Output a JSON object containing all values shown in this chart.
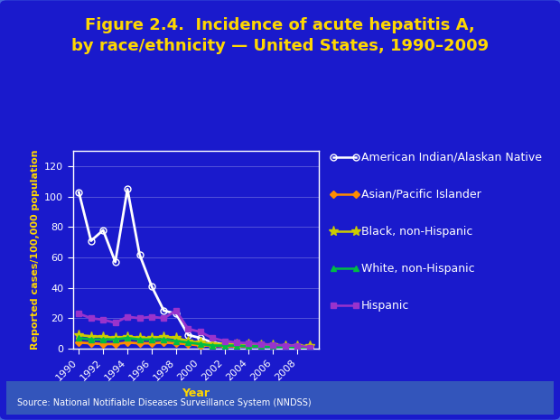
{
  "title_line1": "Figure 2.4.  Incidence of acute hepatitis A,",
  "title_line2": "by race/ethnicity — United States, 1990–2009",
  "xlabel": "Year",
  "ylabel": "Reported cases/100,000 population",
  "source": "Source: National Notifiable Diseases Surveillance System (NNDSS)",
  "years": [
    1990,
    1991,
    1992,
    1993,
    1994,
    1995,
    1996,
    1997,
    1998,
    1999,
    2000,
    2001,
    2002,
    2003,
    2004,
    2005,
    2006,
    2007,
    2008,
    2009
  ],
  "series": {
    "American Indian/Alaskan Native": {
      "color": "#FFFFFF",
      "marker": "o",
      "marker_fc": "none",
      "linewidth": 2.0,
      "markersize": 5,
      "values": [
        103,
        71,
        78,
        57,
        105,
        62,
        41,
        25,
        23,
        9,
        7,
        4,
        3,
        2,
        2,
        1.5,
        1.5,
        1,
        0.8,
        0.3
      ]
    },
    "Asian/Pacific Islander": {
      "color": "#FF8C00",
      "marker": "D",
      "marker_fc": "#FF8C00",
      "linewidth": 2.0,
      "markersize": 4,
      "values": [
        4,
        3.5,
        3,
        3,
        4,
        3.5,
        3.5,
        4,
        3.5,
        3,
        2,
        2,
        1.5,
        1.5,
        1.5,
        1.5,
        1.5,
        1.5,
        1.5,
        1.5
      ]
    },
    "Black, non-Hispanic": {
      "color": "#CCCC00",
      "marker": "*",
      "marker_fc": "#CCCC00",
      "linewidth": 2.0,
      "markersize": 8,
      "values": [
        9,
        8,
        8,
        7,
        8,
        7,
        7,
        8,
        7,
        5,
        4,
        3,
        3,
        3,
        3,
        2.5,
        2.5,
        2,
        2,
        1.5
      ]
    },
    "White, non-Hispanic": {
      "color": "#00BB44",
      "marker": "^",
      "marker_fc": "#00BB44",
      "linewidth": 2.0,
      "markersize": 5,
      "values": [
        7,
        6,
        6,
        6,
        7,
        6,
        6,
        6,
        5,
        4,
        3,
        2,
        2,
        2,
        1.5,
        1.5,
        1,
        1,
        0.8,
        0.5
      ]
    },
    "Hispanic": {
      "color": "#9933CC",
      "marker": "s",
      "marker_fc": "#9933CC",
      "linewidth": 2.0,
      "markersize": 4,
      "values": [
        23,
        20,
        19,
        17,
        21,
        20,
        21,
        20,
        25,
        13,
        11,
        7,
        5,
        4,
        3.5,
        3,
        2.5,
        2,
        2,
        0.8
      ]
    }
  },
  "series_order": [
    "American Indian/Alaskan Native",
    "Asian/Pacific Islander",
    "Black, non-Hispanic",
    "White, non-Hispanic",
    "Hispanic"
  ],
  "ylim": [
    0,
    130
  ],
  "yticks": [
    0,
    20,
    40,
    60,
    80,
    100,
    120
  ],
  "xlim": [
    1989.5,
    2009.8
  ],
  "xticks": [
    1990,
    1992,
    1994,
    1996,
    1998,
    2000,
    2002,
    2004,
    2006,
    2008
  ],
  "bg_outer": "#1a1acc",
  "bg_inner": "#1a1acc",
  "title_color": "#FFD700",
  "axis_label_color": "#FFD700",
  "tick_label_color": "#FFFFFF",
  "legend_text_color": "#FFFFFF",
  "source_color": "#FFFFFF",
  "grid_color": "#FFFFFF",
  "spine_color": "#FFFFFF",
  "title_fontsize": 13,
  "legend_fontsize": 9,
  "axis_label_fontsize": 9,
  "tick_fontsize": 8
}
